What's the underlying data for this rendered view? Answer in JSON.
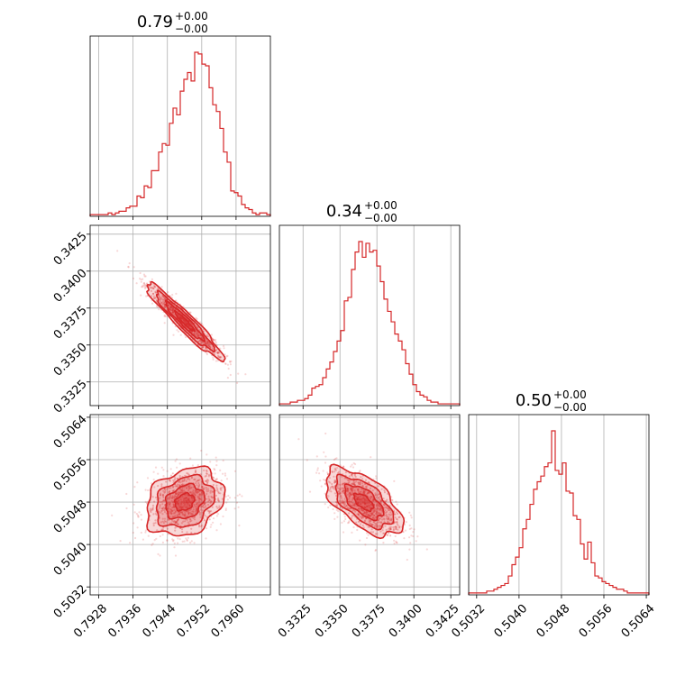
{
  "chart_data": {
    "type": "corner",
    "color": "#d62728",
    "grid": true,
    "parameters": [
      {
        "title_value": "0.79",
        "title_plus": "+0.00",
        "title_minus": "−0.00",
        "range": [
          0.7926,
          0.7968
        ],
        "ticks": [
          0.7928,
          0.7936,
          0.7944,
          0.7952,
          0.796
        ],
        "tick_labels": [
          "0.7928",
          "0.7936",
          "0.7944",
          "0.7952",
          "0.7960"
        ],
        "median": 0.7948,
        "sigma": 0.00045,
        "hist_counts": [
          1,
          1,
          1,
          1,
          1,
          2,
          1,
          2,
          3,
          3,
          5,
          6,
          6,
          12,
          11,
          18,
          17,
          27,
          27,
          38,
          43,
          42,
          55,
          64,
          60,
          74,
          81,
          85,
          80,
          97,
          96,
          90,
          89,
          76,
          66,
          62,
          52,
          38,
          32,
          15,
          14,
          12,
          7,
          5,
          4,
          2,
          1,
          2,
          2,
          1
        ]
      },
      {
        "title_value": "0.34",
        "title_plus": "+0.00",
        "title_minus": "−0.00",
        "range": [
          0.3309,
          0.3431
        ],
        "ticks": [
          0.3325,
          0.335,
          0.3375,
          0.34,
          0.3425
        ],
        "tick_labels": [
          "0.3325",
          "0.3350",
          "0.3375",
          "0.3400",
          "0.3425"
        ],
        "median": 0.3366,
        "sigma": 0.0013,
        "hist_counts": [
          1,
          1,
          1,
          2,
          2,
          3,
          3,
          4,
          6,
          10,
          11,
          12,
          16,
          21,
          25,
          31,
          37,
          43,
          60,
          62,
          78,
          88,
          94,
          85,
          93,
          88,
          89,
          80,
          71,
          61,
          54,
          48,
          41,
          37,
          32,
          24,
          18,
          12,
          8,
          6,
          5,
          3,
          2,
          2,
          1,
          1,
          1,
          1,
          1,
          1
        ]
      },
      {
        "title_value": "0.50",
        "title_plus": "+0.00",
        "title_minus": "−0.00",
        "range": [
          0.50305,
          0.50645
        ],
        "ticks": [
          0.5032,
          0.504,
          0.5048,
          0.5056,
          0.5064
        ],
        "tick_labels": [
          "0.5032",
          "0.5040",
          "0.5048",
          "0.5056",
          "0.5064"
        ],
        "median": 0.5048,
        "sigma": 0.00032,
        "hist_counts": [
          1,
          1,
          1,
          1,
          1,
          2,
          2,
          3,
          4,
          5,
          6,
          10,
          16,
          20,
          25,
          35,
          40,
          48,
          56,
          60,
          63,
          68,
          70,
          87,
          66,
          64,
          70,
          55,
          54,
          42,
          40,
          27,
          19,
          28,
          17,
          10,
          9,
          7,
          6,
          5,
          4,
          3,
          3,
          2,
          1,
          1,
          1,
          1,
          1,
          1
        ]
      }
    ],
    "pairs": [
      {
        "x_param": 0,
        "y_param": 1,
        "correlation": -0.95
      },
      {
        "x_param": 0,
        "y_param": 2,
        "correlation": 0.25
      },
      {
        "x_param": 1,
        "y_param": 2,
        "correlation": -0.6
      }
    ]
  }
}
